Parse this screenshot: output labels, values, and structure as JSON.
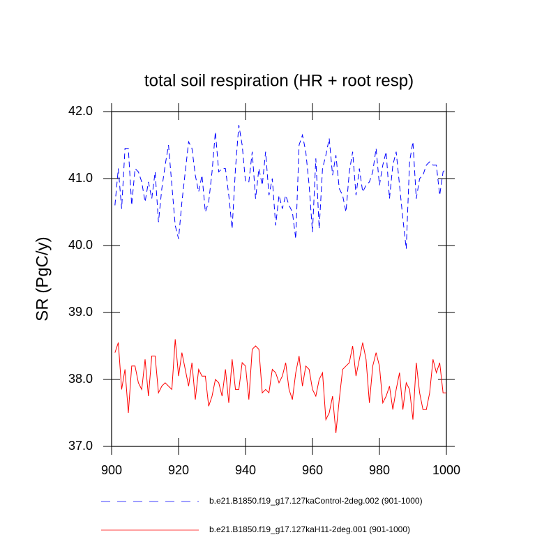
{
  "chart_data": {
    "type": "line",
    "title": "total soil respiration (HR + root resp)",
    "y_label": "SR  (PgC/y)",
    "x": [
      901,
      902,
      903,
      904,
      905,
      906,
      907,
      908,
      909,
      910,
      911,
      912,
      913,
      914,
      915,
      916,
      917,
      918,
      919,
      920,
      921,
      922,
      923,
      924,
      925,
      926,
      927,
      928,
      929,
      930,
      931,
      932,
      933,
      934,
      935,
      936,
      937,
      938,
      939,
      940,
      941,
      942,
      943,
      944,
      945,
      946,
      947,
      948,
      949,
      950,
      951,
      952,
      953,
      954,
      955,
      956,
      957,
      958,
      959,
      960,
      961,
      962,
      963,
      964,
      965,
      966,
      967,
      968,
      969,
      970,
      971,
      972,
      973,
      974,
      975,
      976,
      977,
      978,
      979,
      980,
      981,
      982,
      983,
      984,
      985,
      986,
      987,
      988,
      989,
      990,
      991,
      992,
      993,
      994,
      995,
      996,
      997,
      998,
      999,
      1000
    ],
    "series": [
      {
        "name": "b.e21.B1850.f19_g17.127kaControl-2deg.002 (901-1000)",
        "color": "#0000ff",
        "dash": true,
        "values": [
          40.6,
          41.15,
          40.55,
          41.45,
          41.45,
          40.6,
          41.15,
          41.1,
          40.95,
          40.65,
          40.95,
          40.7,
          41.1,
          40.35,
          40.85,
          41.2,
          41.5,
          40.9,
          40.3,
          40.1,
          40.65,
          41.1,
          41.55,
          41.45,
          41.05,
          40.8,
          41.05,
          40.5,
          40.65,
          41.1,
          41.7,
          41.1,
          41.15,
          41.15,
          40.75,
          40.25,
          41.15,
          41.8,
          41.5,
          40.95,
          40.95,
          41.4,
          40.7,
          41.15,
          40.9,
          41.4,
          40.75,
          41.0,
          40.3,
          40.75,
          40.55,
          40.75,
          40.6,
          40.5,
          40.1,
          41.5,
          41.65,
          41.4,
          40.9,
          40.2,
          41.3,
          40.25,
          41.15,
          41.35,
          41.6,
          41.05,
          41.35,
          40.85,
          40.75,
          40.5,
          41.1,
          41.4,
          40.75,
          41.15,
          40.8,
          40.9,
          40.95,
          41.1,
          41.45,
          40.9,
          41.2,
          41.4,
          40.7,
          41.2,
          41.4,
          40.9,
          40.4,
          39.95,
          41.25,
          41.55,
          40.7,
          41.0,
          41.05,
          41.2,
          41.25,
          41.2,
          41.2,
          40.75,
          41.1,
          41.15
        ]
      },
      {
        "name": "b.e21.B1850.f19_g17.127kaH11-2deg.001 (901-1000)",
        "color": "#ff0000",
        "dash": false,
        "values": [
          38.4,
          38.55,
          37.85,
          38.15,
          37.5,
          38.2,
          38.2,
          37.95,
          37.85,
          38.3,
          37.75,
          38.35,
          38.35,
          37.8,
          37.9,
          37.95,
          37.9,
          37.85,
          38.6,
          38.05,
          38.4,
          38.15,
          37.9,
          38.25,
          37.7,
          38.15,
          38.05,
          38.05,
          37.6,
          37.75,
          38.0,
          37.95,
          37.75,
          38.15,
          37.65,
          38.3,
          37.85,
          37.85,
          38.25,
          38.2,
          37.7,
          38.45,
          38.5,
          38.45,
          37.8,
          37.85,
          37.8,
          38.15,
          38.1,
          37.95,
          38.05,
          38.25,
          37.85,
          37.7,
          38.1,
          38.35,
          37.9,
          38.2,
          38.15,
          37.85,
          37.75,
          38.0,
          38.1,
          37.4,
          37.5,
          37.75,
          37.2,
          37.7,
          38.15,
          38.2,
          38.25,
          38.5,
          38.05,
          38.3,
          38.55,
          38.3,
          37.65,
          38.2,
          38.4,
          38.2,
          37.65,
          37.75,
          37.9,
          37.55,
          37.85,
          38.1,
          37.55,
          37.95,
          37.85,
          37.4,
          38.25,
          37.8,
          37.55,
          37.55,
          37.8,
          38.3,
          38.1,
          38.25,
          37.8,
          37.8
        ]
      }
    ],
    "xlim": [
      900,
      1000
    ],
    "xticks": [
      900,
      920,
      940,
      960,
      980,
      1000
    ],
    "ylim": [
      37,
      42
    ],
    "yticks": [
      {
        "value": 37,
        "label": "37.0"
      },
      {
        "value": 38,
        "label": "38.0"
      },
      {
        "value": 39,
        "label": "39.0"
      },
      {
        "value": 40,
        "label": "40.0"
      },
      {
        "value": 41,
        "label": "41.0"
      },
      {
        "value": 42,
        "label": "42.0"
      }
    ]
  }
}
